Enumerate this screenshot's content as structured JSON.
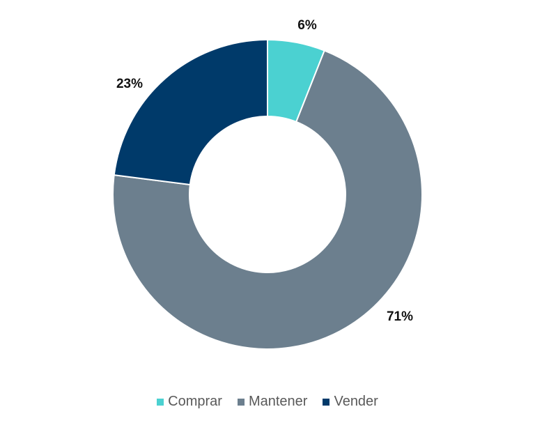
{
  "chart_data": {
    "type": "pie",
    "subtype": "donut",
    "title": "",
    "categories": [
      "Comprar",
      "Mantener",
      "Vender"
    ],
    "values": [
      6,
      71,
      23
    ],
    "labels": [
      "6%",
      "71%",
      "23%"
    ],
    "colors": [
      "#4BD1D1",
      "#6C7F8E",
      "#003A6A"
    ],
    "start_angle": "top",
    "direction": "clockwise",
    "legend_position": "bottom"
  },
  "labels": {
    "comprar": "6%",
    "mantener": "71%",
    "vender": "23%"
  },
  "legend": [
    {
      "label": "Comprar",
      "color": "#4BD1D1"
    },
    {
      "label": "Mantener",
      "color": "#6C7F8E"
    },
    {
      "label": "Vender",
      "color": "#003A6A"
    }
  ]
}
